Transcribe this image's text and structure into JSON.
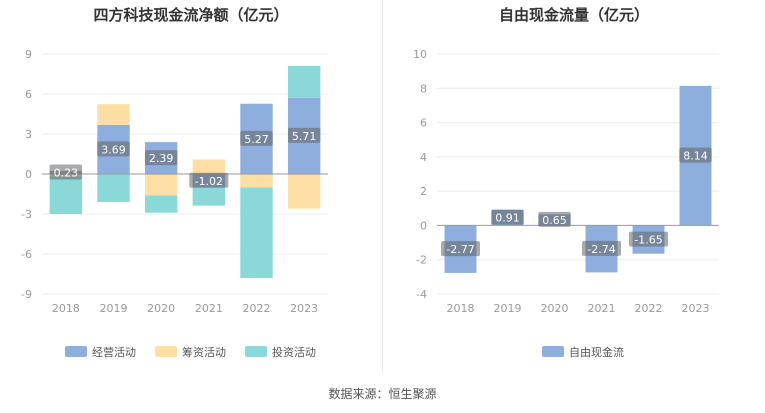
{
  "footer": "数据来源：恒生聚源",
  "chart_data": [
    {
      "type": "bar",
      "stacked": true,
      "title": "四方科技现金流净额（亿元）",
      "categories": [
        "2018",
        "2019",
        "2020",
        "2021",
        "2022",
        "2023"
      ],
      "ylim": [
        -9,
        9
      ],
      "yticks": [
        9,
        6,
        3,
        0,
        -3,
        -6,
        -9
      ],
      "grid": true,
      "legend_position": "bottom",
      "series": [
        {
          "name": "经营活动",
          "color": "#8eaedd",
          "values": [
            0.23,
            3.69,
            2.39,
            -1.02,
            5.27,
            5.71
          ]
        },
        {
          "name": "筹资活动",
          "color": "#fddfa5",
          "values": [
            -0.2,
            1.55,
            -1.6,
            1.1,
            -1.0,
            -2.6
          ]
        },
        {
          "name": "投资活动",
          "color": "#8ad8d8",
          "values": [
            -2.8,
            -2.1,
            -1.3,
            -1.35,
            -6.8,
            2.4
          ]
        }
      ],
      "value_labels": [
        "0.23",
        "3.69",
        "2.39",
        "-1.02",
        "5.27",
        "5.71"
      ]
    },
    {
      "type": "bar",
      "title": "自由现金流量（亿元）",
      "categories": [
        "2018",
        "2019",
        "2020",
        "2021",
        "2022",
        "2023"
      ],
      "ylim": [
        -4,
        10
      ],
      "yticks": [
        10,
        8,
        6,
        4,
        2,
        0,
        -2,
        -4
      ],
      "grid": true,
      "legend_position": "bottom",
      "series": [
        {
          "name": "自由现金流",
          "color": "#8eaedd",
          "values": [
            -2.77,
            0.91,
            0.65,
            -2.74,
            -1.65,
            8.14
          ]
        }
      ],
      "value_labels": [
        "-2.77",
        "0.91",
        "0.65",
        "-2.74",
        "-1.65",
        "8.14"
      ]
    }
  ]
}
